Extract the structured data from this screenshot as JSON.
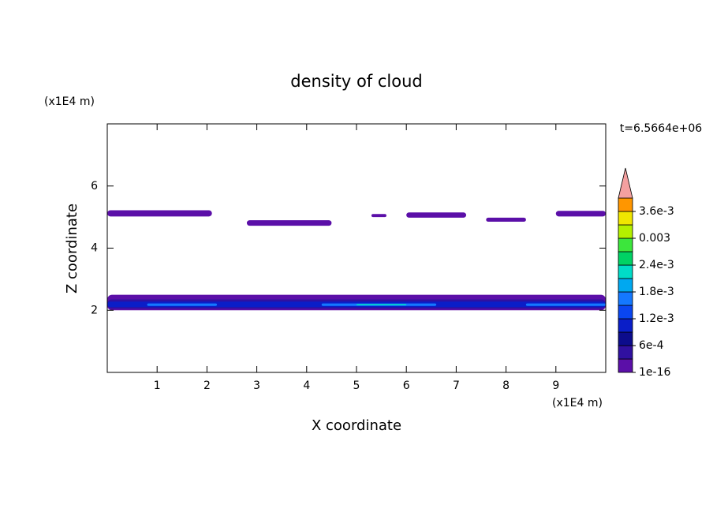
{
  "chart_data": {
    "type": "contour",
    "title": "density of cloud",
    "time_label": "t=6.5664e+06",
    "x_label": "X coordinate",
    "y_label": "Z coordinate",
    "x_unit": "(x1E4 m)",
    "y_unit": "(x1E4 m)",
    "xlim": [
      0,
      10
    ],
    "ylim": [
      0,
      8
    ],
    "xticks": [
      1,
      2,
      3,
      4,
      5,
      6,
      7,
      8,
      9
    ],
    "yticks": [
      2,
      4,
      6
    ],
    "colorbar": {
      "levels": [
        1e-16,
        0.0003,
        0.0006,
        0.0009,
        0.0012,
        0.0015,
        0.0018,
        0.0021,
        0.0024,
        0.0027,
        0.003,
        0.0033,
        0.0036,
        0.0039
      ],
      "colors": [
        "#5b0fa8",
        "#3010a0",
        "#0c0c8c",
        "#0a1ec8",
        "#0a46f0",
        "#1478ff",
        "#00a8f0",
        "#00dcc8",
        "#00d264",
        "#3ce63c",
        "#b4f000",
        "#f0e600",
        "#ff9600"
      ],
      "extend_color": "#f4a0a0",
      "ticks": [
        1e-16,
        {
          "value": 0.0006,
          "label": "6e-4"
        },
        {
          "value": 0.0012,
          "label": "1.2e-3"
        },
        {
          "value": 0.0018,
          "label": "1.8e-3"
        },
        {
          "value": 0.0024,
          "label": "2.4e-3"
        },
        0.003,
        {
          "value": 0.0036,
          "label": "3.6e-3"
        }
      ]
    },
    "regions": [
      {
        "x": [
          0,
          2.1
        ],
        "z": [
          5.02,
          5.22
        ],
        "value": 0.0001
      },
      {
        "x": [
          2.8,
          4.5
        ],
        "z": [
          4.72,
          4.9
        ],
        "value": 0.0001
      },
      {
        "x": [
          5.3,
          5.6
        ],
        "z": [
          5.0,
          5.1
        ],
        "value": 0.0001
      },
      {
        "x": [
          6.0,
          7.2
        ],
        "z": [
          4.98,
          5.15
        ],
        "value": 0.0001
      },
      {
        "x": [
          7.6,
          8.4
        ],
        "z": [
          4.85,
          4.98
        ],
        "value": 0.0001
      },
      {
        "x": [
          9.0,
          10
        ],
        "z": [
          5.02,
          5.2
        ],
        "value": 0.0001
      },
      {
        "x": [
          0,
          10
        ],
        "z": [
          2.0,
          2.5
        ],
        "value": 0.0001
      },
      {
        "x": [
          0,
          10
        ],
        "z": [
          2.05,
          2.35
        ],
        "value": 0.0004
      },
      {
        "x": [
          0,
          10
        ],
        "z": [
          2.1,
          2.28
        ],
        "value": 0.001
      },
      {
        "x": [
          0.8,
          2.2
        ],
        "z": [
          2.14,
          2.22
        ],
        "value": 0.0016
      },
      {
        "x": [
          4.3,
          6.6
        ],
        "z": [
          2.14,
          2.22
        ],
        "value": 0.0016
      },
      {
        "x": [
          8.4,
          10
        ],
        "z": [
          2.14,
          2.22
        ],
        "value": 0.0016
      },
      {
        "x": [
          5.0,
          6.0
        ],
        "z": [
          2.16,
          2.2
        ],
        "value": 0.0022
      }
    ]
  }
}
